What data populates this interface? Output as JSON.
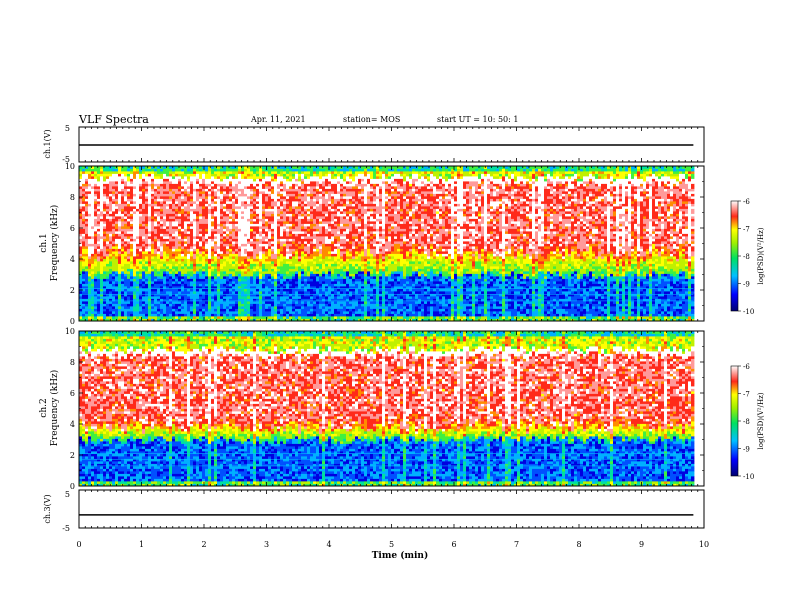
{
  "header": {
    "title": "VLF Spectra",
    "date": "Apr. 11, 2021",
    "station": "station= MOS",
    "start": "start  UT =   10: 50: 1"
  },
  "chart_data": [
    {
      "type": "line",
      "ylabel": "ch.1(V)",
      "yticks": [
        "5",
        "-5"
      ],
      "ylim": [
        -5,
        5
      ],
      "description_level": 0
    },
    {
      "type": "heatmap",
      "ylabel_top": "ch.1",
      "ylabel": "Frequency (kHz)",
      "yticks": [
        "0",
        "2",
        "4",
        "6",
        "8",
        "10"
      ],
      "ylim": [
        0,
        10
      ],
      "colorbar": {
        "label": "log(PSD)(V²/Hz)",
        "ticks": [
          "-6",
          "-7",
          "-8",
          "-9",
          "-10"
        ],
        "range": [
          -10,
          -6
        ]
      },
      "bands_khz": {
        "red": [
          4.5,
          9.0
        ],
        "noise_floor": [
          0,
          3
        ]
      }
    },
    {
      "type": "heatmap",
      "ylabel_top": "ch.2",
      "ylabel": "Frequency (kHz)",
      "yticks": [
        "0",
        "2",
        "4",
        "6",
        "8",
        "10"
      ],
      "ylim": [
        0,
        10
      ],
      "colorbar": {
        "label": "log(PSD)(V²/Hz)",
        "ticks": [
          "-6",
          "-7",
          "-8",
          "-9",
          "-10"
        ],
        "range": [
          -10,
          -6
        ]
      },
      "bands_khz": {
        "red": [
          4.0,
          8.5
        ],
        "noise_floor": [
          0,
          3
        ]
      }
    },
    {
      "type": "line",
      "ylabel": "ch.3(V)",
      "yticks": [
        "5",
        "-5"
      ],
      "ylim": [
        -5,
        5
      ],
      "description_level": -0.5
    }
  ],
  "xaxis": {
    "label": "Time (min)",
    "ticks": [
      "0",
      "1",
      "2",
      "3",
      "4",
      "5",
      "6",
      "7",
      "8",
      "9",
      "10"
    ],
    "xlim": [
      0,
      10
    ],
    "data_end": 9.83
  }
}
